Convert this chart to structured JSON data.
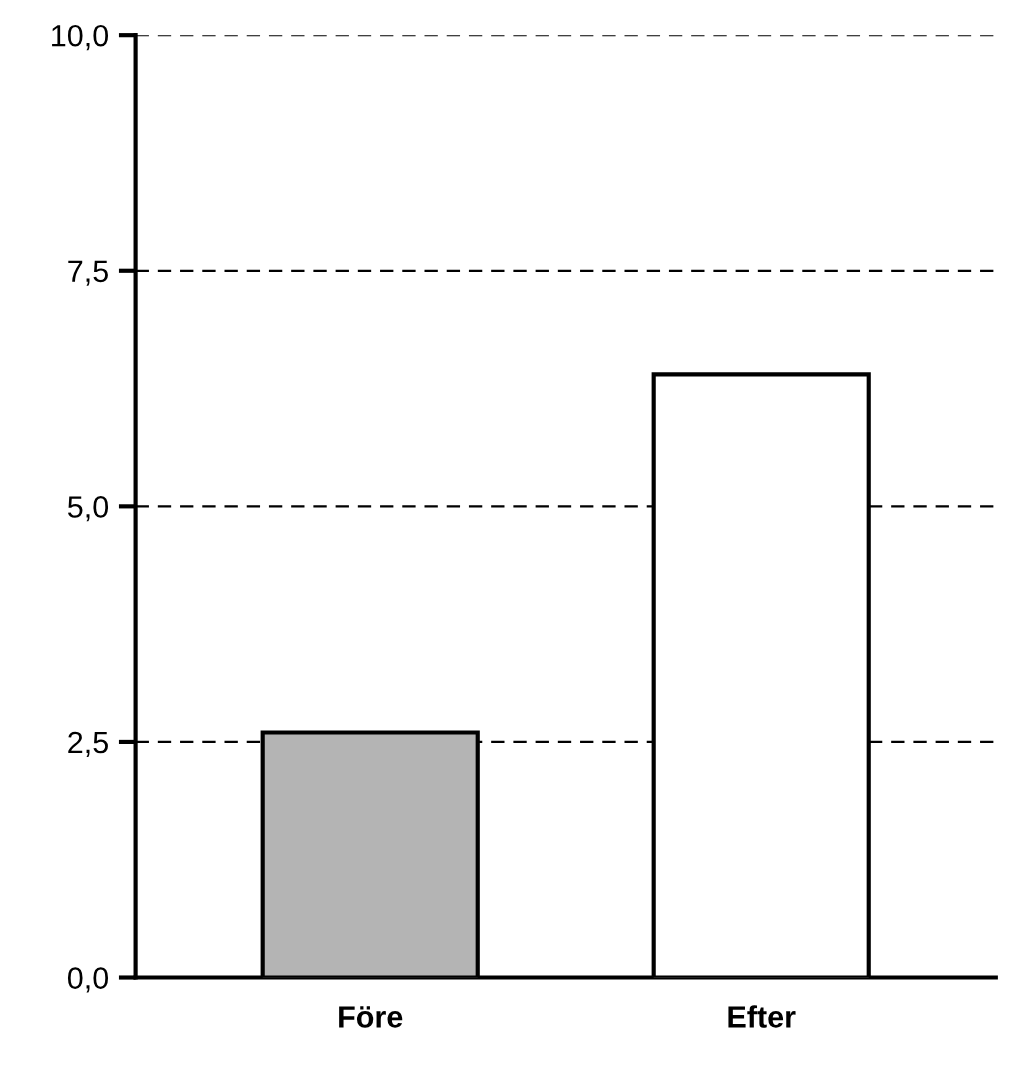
{
  "chart_data": {
    "type": "bar",
    "categories": [
      "Före",
      "Efter"
    ],
    "values": [
      2.6,
      6.4
    ],
    "colors": [
      "#b4b4b4",
      "#ffffff"
    ],
    "ylim": [
      0,
      10
    ],
    "yticks": [
      {
        "value": 0,
        "label": "0,0"
      },
      {
        "value": 2.5,
        "label": "2,5"
      },
      {
        "value": 5,
        "label": "5,0"
      },
      {
        "value": 7.5,
        "label": "7,5"
      },
      {
        "value": 10,
        "label": "10,0"
      }
    ],
    "grid": "y"
  }
}
